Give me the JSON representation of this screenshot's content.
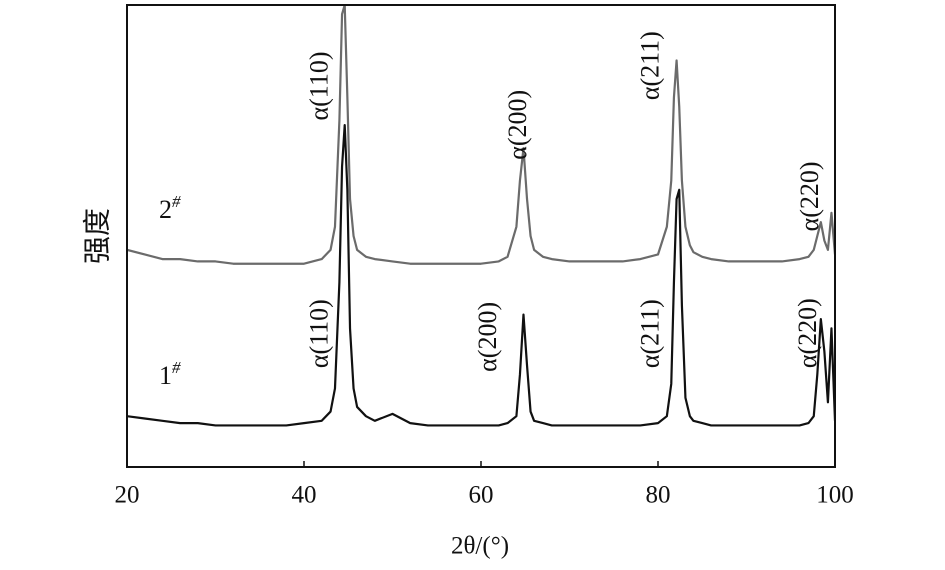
{
  "chart_data": {
    "type": "line",
    "xlabel": "2θ/(°)",
    "ylabel": "强度",
    "x": [
      20,
      22,
      24,
      26,
      28,
      30,
      32,
      34,
      36,
      38,
      40,
      42,
      43,
      43.5,
      44,
      44.3,
      44.6,
      44.9,
      45.2,
      45.6,
      46,
      47,
      48,
      50,
      52,
      54,
      56,
      58,
      60,
      62,
      63,
      64,
      64.4,
      64.8,
      65.2,
      65.6,
      66,
      67,
      68,
      70,
      72,
      74,
      76,
      78,
      80,
      81,
      81.5,
      81.8,
      82.1,
      82.4,
      82.7,
      83.1,
      83.6,
      84,
      85,
      86,
      88,
      90,
      92,
      94,
      96,
      97,
      97.6,
      98,
      98.4,
      98.8,
      99.2,
      99.6,
      100
    ],
    "series": [
      {
        "name": "2#",
        "color": "#6b6b6b",
        "values": [
          47,
          46,
          45,
          45,
          44.5,
          44.5,
          44,
          44,
          44,
          44,
          44,
          45,
          47,
          52,
          75,
          98,
          100,
          80,
          58,
          50,
          47,
          45.5,
          45,
          44.5,
          44,
          44,
          44,
          44,
          44,
          44.5,
          45.5,
          52,
          62,
          69,
          58,
          50,
          47,
          45.5,
          45,
          44.5,
          44.5,
          44.5,
          44.5,
          45,
          46,
          52,
          62,
          80,
          88,
          78,
          62,
          52,
          48,
          46.5,
          45.5,
          45,
          44.5,
          44.5,
          44.5,
          44.5,
          45,
          45.5,
          47,
          50,
          53,
          49,
          47,
          55,
          46
        ]
      },
      {
        "name": "1#",
        "color": "#111111",
        "values": [
          11,
          10.5,
          10,
          9.5,
          9.5,
          9,
          9,
          9,
          9,
          9,
          9.5,
          10,
          12,
          17,
          40,
          65,
          74,
          60,
          30,
          17,
          13,
          11,
          10,
          11.5,
          9.5,
          9,
          9,
          9,
          9,
          9,
          9.5,
          11,
          20,
          33,
          22,
          12,
          10,
          9.5,
          9,
          9,
          9,
          9,
          9,
          9,
          9.5,
          11,
          18,
          40,
          58,
          60,
          35,
          15,
          11,
          10,
          9.5,
          9,
          9,
          9,
          9,
          9,
          9,
          9.5,
          11,
          20,
          32,
          25,
          14,
          30,
          10
        ]
      }
    ],
    "annotations": [
      {
        "text": "α(110)",
        "x": 42.0,
        "y": 75
      },
      {
        "text": "α(200)",
        "x": 64.4,
        "y": 66.5
      },
      {
        "text": "α(211)",
        "x": 79.4,
        "y": 79.4
      },
      {
        "text": "α(220)",
        "x": 97.4,
        "y": 51
      },
      {
        "text": "α(110)",
        "x": 42.0,
        "y": 21.4
      },
      {
        "text": "α(200)",
        "x": 61.0,
        "y": 20.6
      },
      {
        "text": "α(211)",
        "x": 79.4,
        "y": 21.4
      },
      {
        "text": "α(220)",
        "x": 97.2,
        "y": 21.4
      }
    ],
    "xlim": [
      20,
      100
    ],
    "ylim": [
      0,
      100
    ],
    "xticks": [
      20,
      40,
      60,
      80,
      100
    ]
  }
}
